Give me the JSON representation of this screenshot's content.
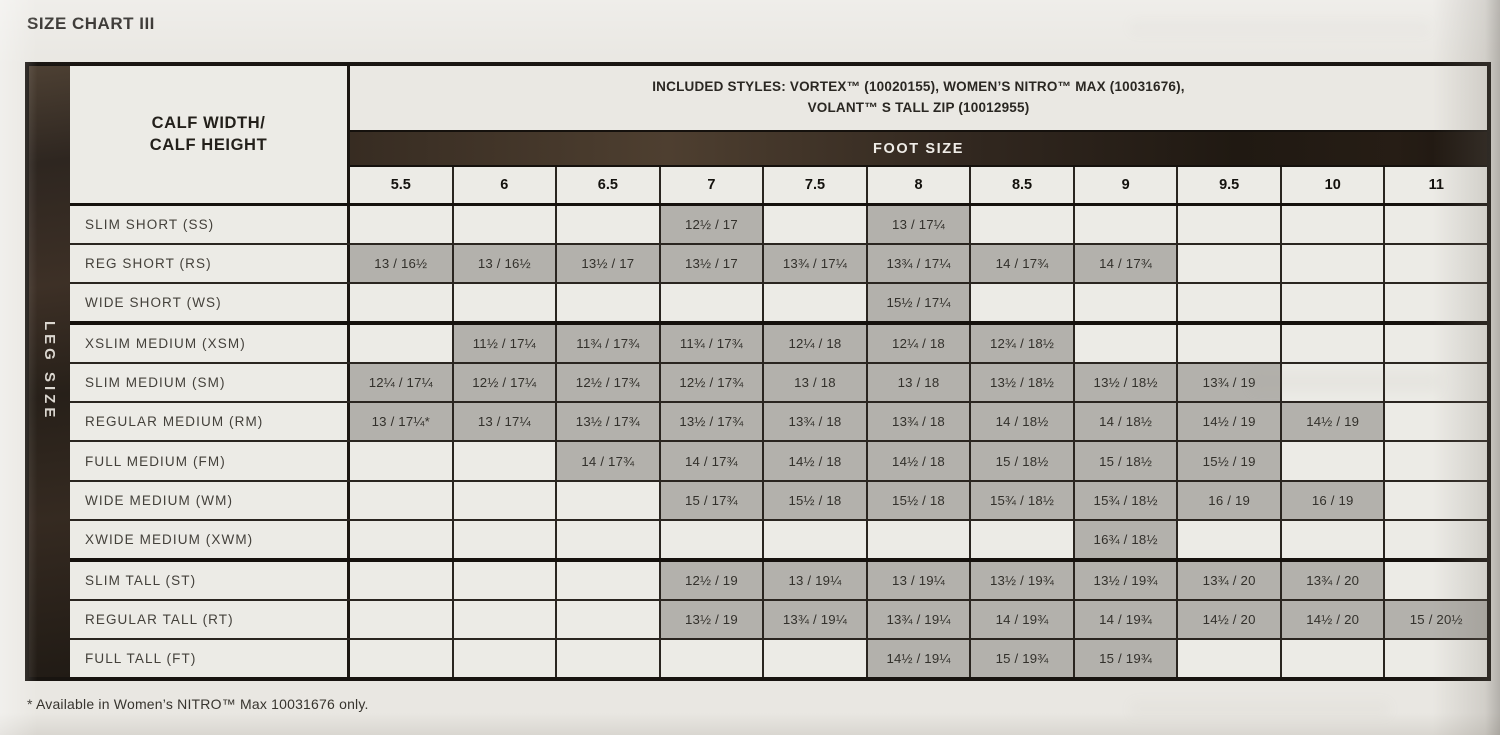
{
  "page": {
    "title": "SIZE CHART III",
    "footnote": "* Available in Women’s NITRO™ Max 10031676 only."
  },
  "table": {
    "leg_size_label": "LEG SIZE",
    "corner_label_line1": "CALF WIDTH/",
    "corner_label_line2": "CALF HEIGHT",
    "included_styles_line1": "INCLUDED STYLES: VORTEX™ (10020155), WOMEN’S NITRO™ MAX (10031676),",
    "included_styles_line2": "VOLANT™ S TALL ZIP (10012955)",
    "foot_size_label": "FOOT SIZE",
    "foot_sizes": [
      "5.5",
      "6",
      "6.5",
      "7",
      "7.5",
      "8",
      "8.5",
      "9",
      "9.5",
      "10",
      "11"
    ],
    "rows": [
      {
        "label": "SLIM SHORT (SS)",
        "group": "short",
        "values": [
          "",
          "",
          "",
          "12½ / 17",
          "",
          "13 / 17¼",
          "",
          "",
          "",
          "",
          ""
        ]
      },
      {
        "label": "REG SHORT (RS)",
        "group": "short",
        "values": [
          "13 / 16½",
          "13 / 16½",
          "13½ / 17",
          "13½ / 17",
          "13¾ / 17¼",
          "13¾ / 17¼",
          "14 / 17¾",
          "14 / 17¾",
          "",
          "",
          ""
        ]
      },
      {
        "label": "WIDE SHORT (WS)",
        "group": "short",
        "values": [
          "",
          "",
          "",
          "",
          "",
          "15½ / 17¼",
          "",
          "",
          "",
          "",
          ""
        ]
      },
      {
        "label": "XSLIM MEDIUM (XSM)",
        "group": "medium",
        "values": [
          "",
          "11½ / 17¼",
          "11¾ / 17¾",
          "11¾ / 17¾",
          "12¼ / 18",
          "12¼ / 18",
          "12¾ / 18½",
          "",
          "",
          "",
          ""
        ]
      },
      {
        "label": "SLIM MEDIUM (SM)",
        "group": "medium",
        "values": [
          "12¼ / 17¼",
          "12½ / 17¼",
          "12½ / 17¾",
          "12½ / 17¾",
          "13 / 18",
          "13 / 18",
          "13½ / 18½",
          "13½ / 18½",
          "13¾ / 19",
          "",
          ""
        ]
      },
      {
        "label": "REGULAR MEDIUM (RM)",
        "group": "medium",
        "values": [
          "13 / 17¼*",
          "13 / 17¼",
          "13½ / 17¾",
          "13½ / 17¾",
          "13¾ / 18",
          "13¾ / 18",
          "14 / 18½",
          "14 / 18½",
          "14½ / 19",
          "14½ / 19",
          ""
        ]
      },
      {
        "label": "FULL MEDIUM (FM)",
        "group": "medium",
        "values": [
          "",
          "",
          "14 / 17¾",
          "14 / 17¾",
          "14½ / 18",
          "14½ / 18",
          "15 / 18½",
          "15 / 18½",
          "15½ / 19",
          "",
          ""
        ]
      },
      {
        "label": "WIDE MEDIUM (WM)",
        "group": "medium",
        "values": [
          "",
          "",
          "",
          "15 / 17¾",
          "15½ / 18",
          "15½ / 18",
          "15¾ / 18½",
          "15¾ / 18½",
          "16 / 19",
          "16 / 19",
          ""
        ]
      },
      {
        "label": "XWIDE MEDIUM (XWM)",
        "group": "medium",
        "values": [
          "",
          "",
          "",
          "",
          "",
          "",
          "",
          "16¾ / 18½",
          "",
          "",
          ""
        ]
      },
      {
        "label": "SLIM TALL (ST)",
        "group": "tall",
        "values": [
          "",
          "",
          "",
          "12½ / 19",
          "13 / 19¼",
          "13 / 19¼",
          "13½ / 19¾",
          "13½ / 19¾",
          "13¾ / 20",
          "13¾ / 20",
          ""
        ]
      },
      {
        "label": "REGULAR TALL (RT)",
        "group": "tall",
        "values": [
          "",
          "",
          "",
          "13½ / 19",
          "13¾ / 19¼",
          "13¾ / 19¼",
          "14 / 19¾",
          "14 / 19¾",
          "14½ / 20",
          "14½ / 20",
          "15 / 20½"
        ]
      },
      {
        "label": "FULL TALL (FT)",
        "group": "tall",
        "values": [
          "",
          "",
          "",
          "",
          "",
          "14½ / 19¼",
          "15 / 19¾",
          "15 / 19¾",
          "",
          "",
          ""
        ]
      }
    ]
  },
  "colors": {
    "cell_filled": "#b3b1ac",
    "cell_empty": "#ecebe6",
    "band_dark": "#2e241c",
    "text_dark": "#16130f"
  }
}
